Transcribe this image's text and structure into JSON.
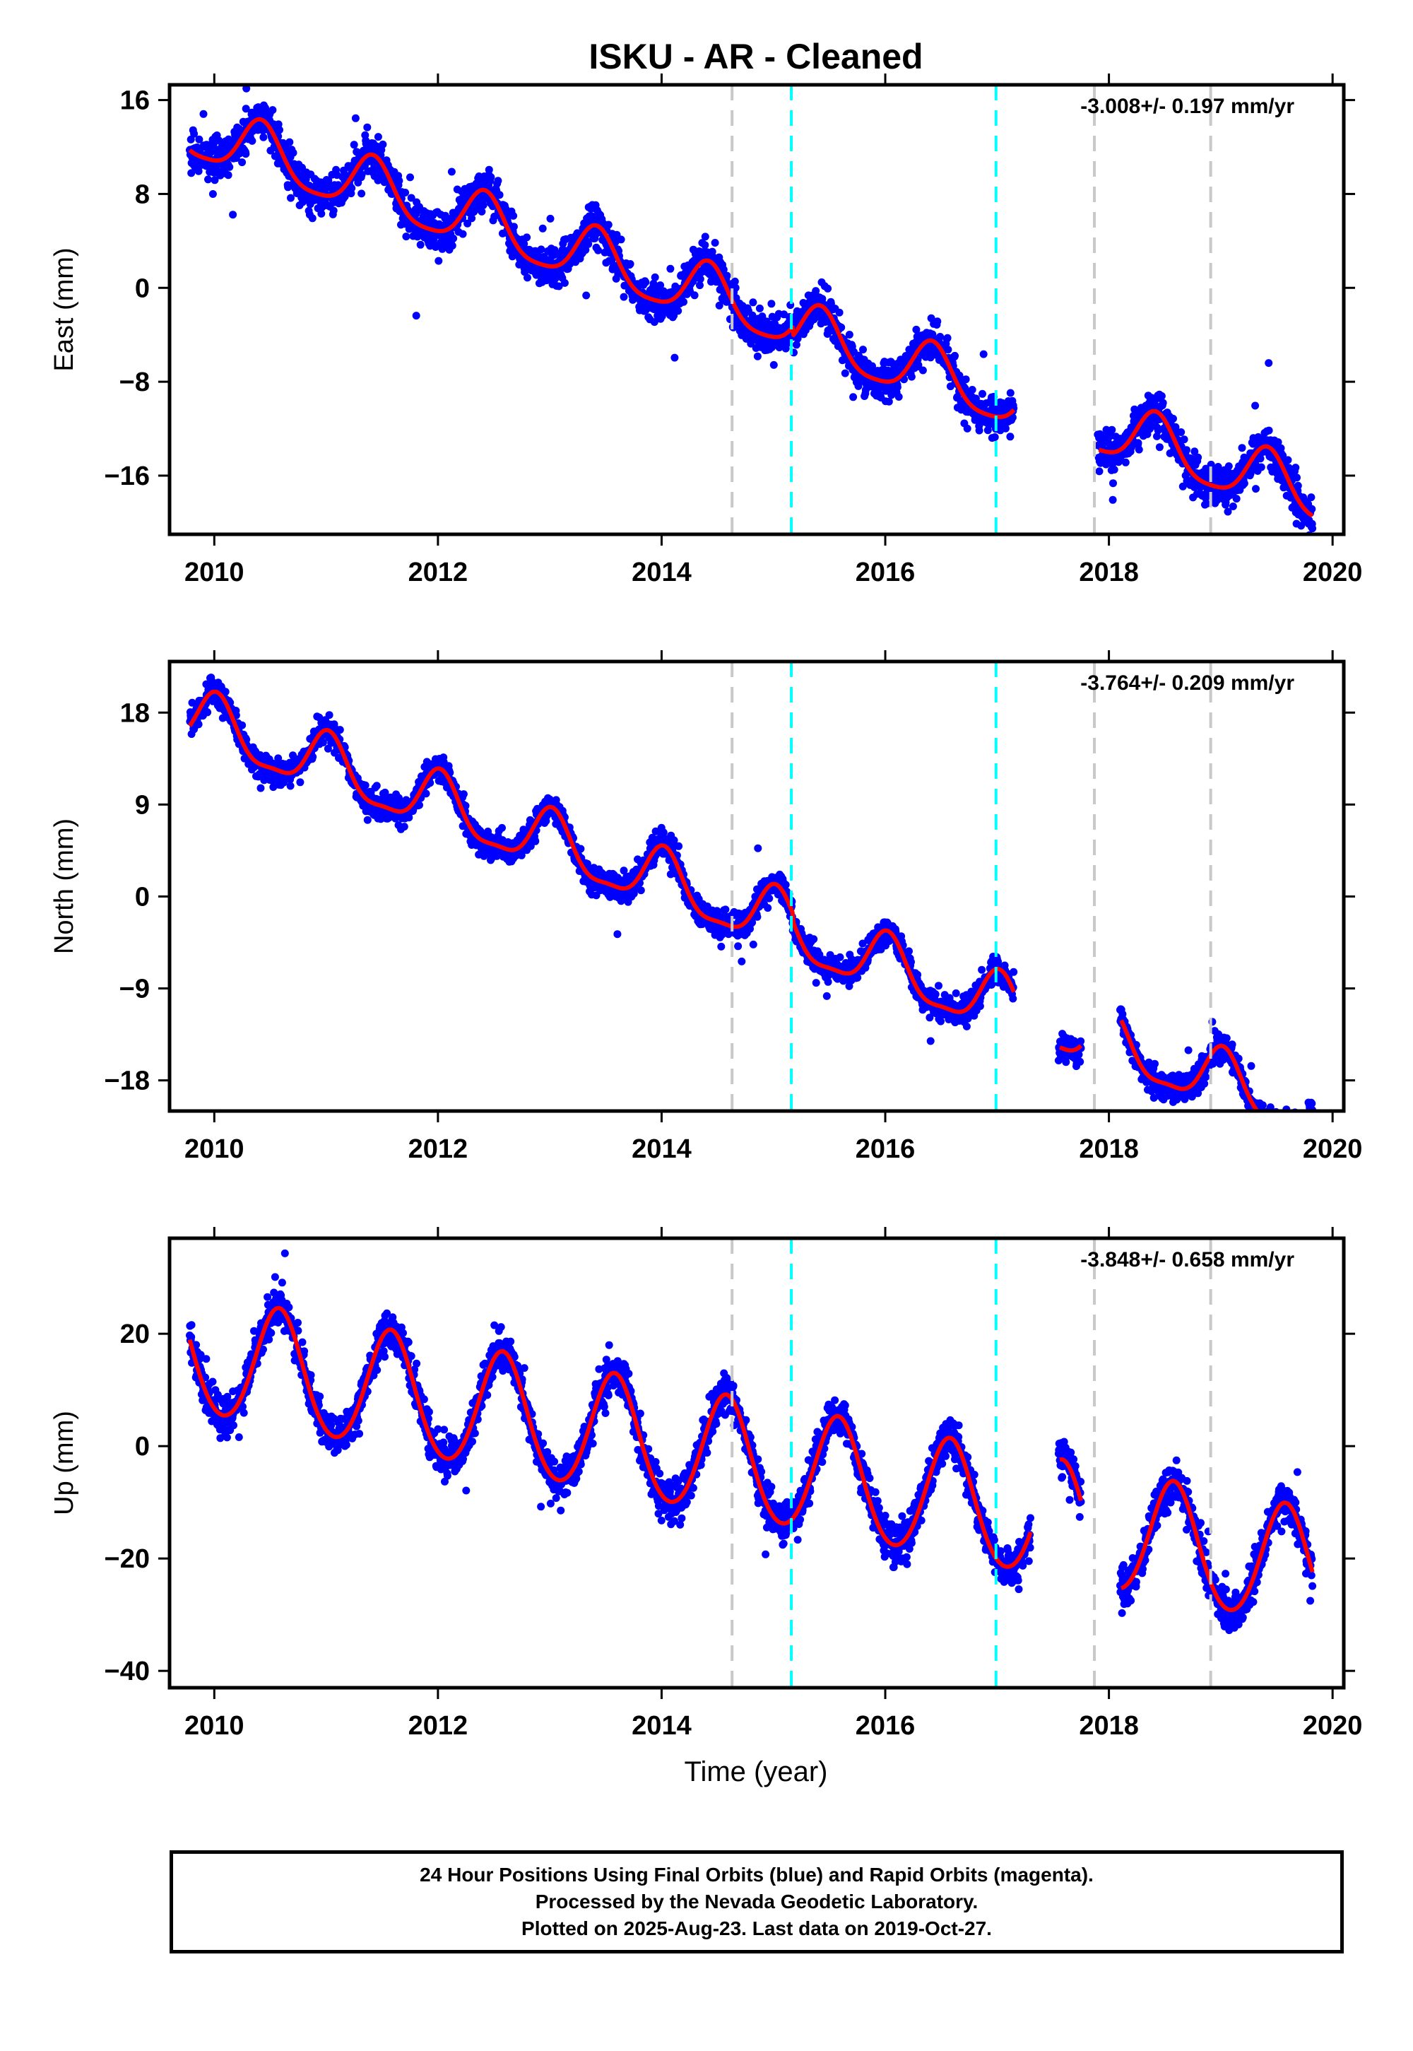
{
  "title": "ISKU  - AR - Cleaned",
  "xlabel": "Time (year)",
  "footer": {
    "line1": "24 Hour Positions Using Final Orbits (blue) and Rapid Orbits (magenta).",
    "line2": "Processed by the Nevada Geodetic Laboratory.",
    "line3": "Plotted on 2025-Aug-23. Last data on 2019-Oct-27."
  },
  "colors": {
    "final_orbits": "#0000ff",
    "fit": "#ff0000",
    "equipment_change": "#c8c8c8",
    "earthquake": "#00ffff"
  },
  "chart_data": [
    {
      "type": "scatter",
      "ylabel": "East (mm)",
      "rate_label": "-3.008+/- 0.197 mm/yr",
      "xlim": [
        2009.6,
        2020.1
      ],
      "ylim": [
        -21,
        17.3
      ],
      "xticks": [
        2010,
        2012,
        2014,
        2016,
        2018,
        2020
      ],
      "yticks": [
        16,
        8,
        0,
        -8,
        -16
      ],
      "ytick_labels": [
        "16",
        "8",
        "0",
        "−8",
        "−16"
      ],
      "grid": false,
      "data_start": 2009.78,
      "data_end": 2019.82,
      "gaps": [
        [
          2017.15,
          2017.9
        ]
      ],
      "trend": {
        "t0": 2010,
        "y0": 12.7,
        "rate": -3.008,
        "annual_amp": 2.4,
        "annual_peak": 0.42,
        "semiannual_amp": 0.5,
        "noise": 1.5
      },
      "offsets": [
        {
          "t": 2015.17,
          "dy": -0.8
        }
      ],
      "vlines_gray": [
        2014.63,
        2017.87,
        2018.91
      ],
      "vlines_cyan": [
        2015.16,
        2016.99
      ]
    },
    {
      "type": "scatter",
      "ylabel": "North (mm)",
      "rate_label": "-3.764+/- 0.209 mm/yr",
      "xlim": [
        2009.6,
        2020.1
      ],
      "ylim": [
        -21,
        23
      ],
      "xticks": [
        2010,
        2012,
        2014,
        2016,
        2018,
        2020
      ],
      "yticks": [
        18,
        9,
        0,
        -9,
        -18
      ],
      "ytick_labels": [
        "18",
        "9",
        "0",
        "−9",
        "−18"
      ],
      "grid": false,
      "data_start": 2009.78,
      "data_end": 2019.82,
      "gaps": [
        [
          2017.15,
          2017.55
        ],
        [
          2017.75,
          2018.1
        ]
      ],
      "trend": {
        "t0": 2010,
        "y0": 16.5,
        "rate": -3.764,
        "annual_amp": 2.8,
        "annual_peak": 0.02,
        "semiannual_amp": 0.8,
        "noise": 1.2
      },
      "offsets": [
        {
          "t": 2015.17,
          "dy": -0.8
        }
      ],
      "vlines_gray": [
        2014.63,
        2017.87,
        2018.91
      ],
      "vlines_cyan": [
        2015.16,
        2016.99
      ]
    },
    {
      "type": "scatter",
      "ylabel": "Up (mm)",
      "rate_label": "-3.848+/- 0.658 mm/yr",
      "xlim": [
        2009.6,
        2020.1
      ],
      "ylim": [
        -43,
        37
      ],
      "xticks": [
        2010,
        2012,
        2014,
        2016,
        2018,
        2020
      ],
      "yticks": [
        20,
        0,
        -20,
        -40
      ],
      "ytick_labels": [
        "20",
        "0",
        "−20",
        "−40"
      ],
      "grid": false,
      "data_start": 2009.78,
      "data_end": 2019.82,
      "gaps": [
        [
          2017.3,
          2017.55
        ],
        [
          2017.75,
          2018.1
        ]
      ],
      "trend": {
        "t0": 2010,
        "y0": 15.5,
        "rate": -3.848,
        "annual_amp": 10.5,
        "annual_peak": 0.58,
        "semiannual_amp": 0.8,
        "noise": 3.2
      },
      "offsets": [],
      "vlines_gray": [
        2014.63,
        2017.87,
        2018.91
      ],
      "vlines_cyan": [
        2015.16,
        2016.99
      ]
    }
  ]
}
